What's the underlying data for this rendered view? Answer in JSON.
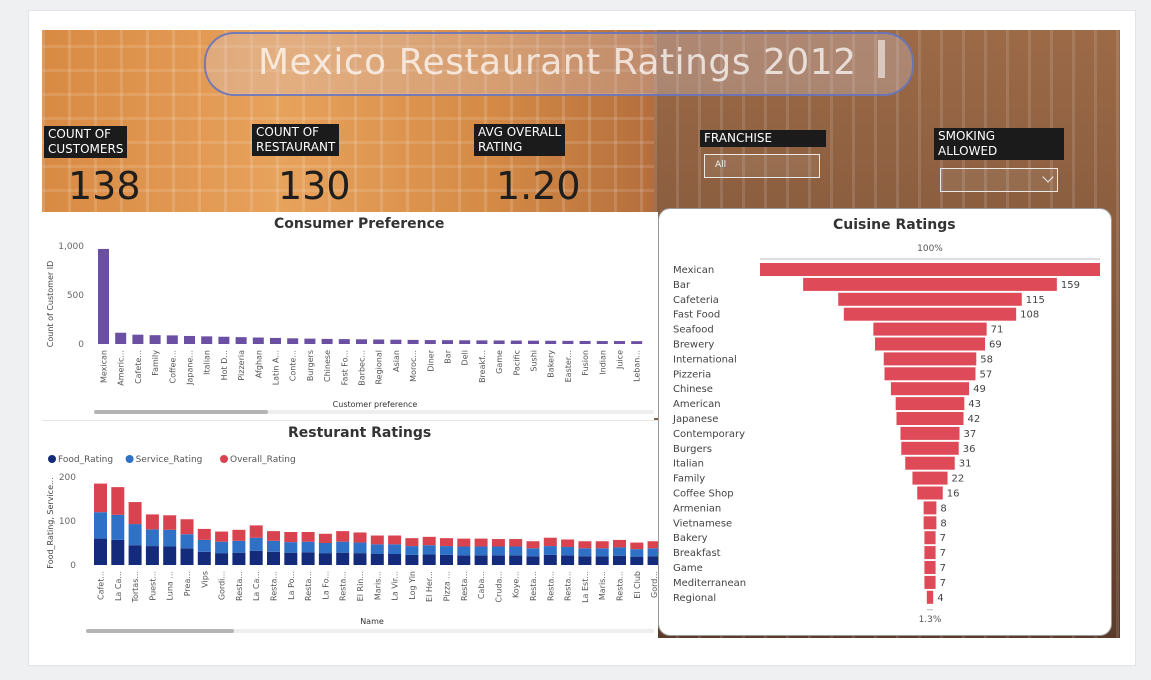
{
  "dashboard": {
    "title": "Mexico Restaurant Ratings 2012",
    "kpis": [
      {
        "label": [
          "COUNT OF",
          "CUSTOMERS"
        ],
        "value": "138"
      },
      {
        "label": [
          "COUNT OF",
          "RESTAURANT"
        ],
        "value": "130"
      },
      {
        "label": [
          "AVG OVERALL",
          "RATING"
        ],
        "value": "1.20"
      }
    ],
    "slicers": [
      {
        "label": [
          "FRANCHISE"
        ],
        "selected": "All"
      },
      {
        "label": [
          "SMOKING",
          "ALLOWED"
        ],
        "selected": ""
      }
    ]
  },
  "colors": {
    "preference_bar": "#6a4fa3",
    "food_rating": "#142a7a",
    "service_rating": "#2f71c7",
    "overall_rating": "#d9434f",
    "funnel": "#de4a57"
  },
  "chart_data": [
    {
      "id": "consumer-preference",
      "type": "bar",
      "title": "Consumer Preference",
      "xlabel": "Customer preference",
      "ylabel": "Count of Customer ID",
      "ylim": [
        0,
        1000
      ],
      "yticks": [
        "0",
        "500",
        "1,000"
      ],
      "categories": [
        "Mexican",
        "Americ...",
        "Cafete...",
        "Family",
        "Coffee...",
        "Japane...",
        "Italian",
        "Hot D...",
        "Pizzeria",
        "Afghan",
        "Latin A...",
        "Conte...",
        "Burgers",
        "Chinese",
        "Fast Fo...",
        "Barbec...",
        "Regional",
        "Asian",
        "Moroc...",
        "Diner",
        "Bar",
        "Deli",
        "Breakf...",
        "Game",
        "Pacific",
        "Sushi",
        "Bakery",
        "Easter...",
        "Fusion",
        "Indian",
        "Juice",
        "Leban..."
      ],
      "values": [
        970,
        115,
        95,
        90,
        88,
        82,
        78,
        74,
        70,
        66,
        62,
        58,
        55,
        52,
        50,
        48,
        46,
        44,
        42,
        40,
        39,
        38,
        37,
        36,
        35,
        34,
        33,
        32,
        31,
        30,
        30,
        29
      ]
    },
    {
      "id": "resturant-ratings",
      "type": "bar",
      "stacked": true,
      "title": "Resturant Ratings",
      "xlabel": "Name",
      "ylabel": "Food_Rating, Service...",
      "ylim": [
        0,
        200
      ],
      "yticks": [
        "0",
        "100",
        "200"
      ],
      "legend": "top-left",
      "categories": [
        "Cafet...",
        "La Ca...",
        "Tortas...",
        "Puest...",
        "Luna ...",
        "Prea...",
        "Vips",
        "Gordi...",
        "Resta...",
        "La Ca...",
        "Resta...",
        "La Po...",
        "Resta...",
        "La Fo...",
        "Resta...",
        "El Rin...",
        "Maris...",
        "La Vir...",
        "Log Yin",
        "El Her...",
        "Pizza ...",
        "Resta...",
        "Caba...",
        "Cruda...",
        "Koye...",
        "Resta...",
        "Resta...",
        "Resta...",
        "La Est...",
        "Maris...",
        "Resta...",
        "El Club",
        "Gord..."
      ],
      "series": [
        {
          "name": "Food_Rating",
          "values": [
            60,
            57,
            45,
            43,
            42,
            38,
            30,
            27,
            28,
            32,
            30,
            28,
            29,
            27,
            28,
            27,
            25,
            25,
            23,
            24,
            23,
            22,
            22,
            22,
            22,
            20,
            23,
            22,
            20,
            20,
            21,
            19,
            20
          ]
        },
        {
          "name": "Service_Rating",
          "values": [
            60,
            57,
            48,
            38,
            38,
            32,
            27,
            26,
            27,
            30,
            25,
            24,
            24,
            23,
            25,
            24,
            22,
            22,
            20,
            21,
            20,
            20,
            20,
            20,
            20,
            18,
            20,
            19,
            18,
            18,
            19,
            17,
            18
          ]
        },
        {
          "name": "Overall_Rating",
          "values": [
            65,
            63,
            50,
            34,
            33,
            34,
            25,
            23,
            25,
            28,
            22,
            23,
            22,
            21,
            24,
            23,
            20,
            20,
            18,
            19,
            18,
            18,
            18,
            17,
            17,
            16,
            19,
            17,
            16,
            16,
            17,
            15,
            16
          ]
        }
      ]
    },
    {
      "id": "cuisine-ratings",
      "type": "bar",
      "orientation": "funnel",
      "title": "Cuisine Ratings",
      "top_label": "100%",
      "bottom_label": "1.3%",
      "categories": [
        "Mexican",
        "Bar",
        "Cafeteria",
        "Fast Food",
        "Seafood",
        "Brewery",
        "International",
        "Pizzeria",
        "Chinese",
        "American",
        "Japanese",
        "Contemporary",
        "Burgers",
        "Italian",
        "Family",
        "Coffee Shop",
        "Armenian",
        "Vietnamese",
        "Bakery",
        "Breakfast",
        "Game",
        "Mediterranean",
        "Regional"
      ],
      "values": [
        null,
        159,
        115,
        108,
        71,
        69,
        58,
        57,
        49,
        43,
        42,
        37,
        36,
        31,
        22,
        16,
        8,
        8,
        7,
        7,
        7,
        7,
        4
      ]
    }
  ]
}
